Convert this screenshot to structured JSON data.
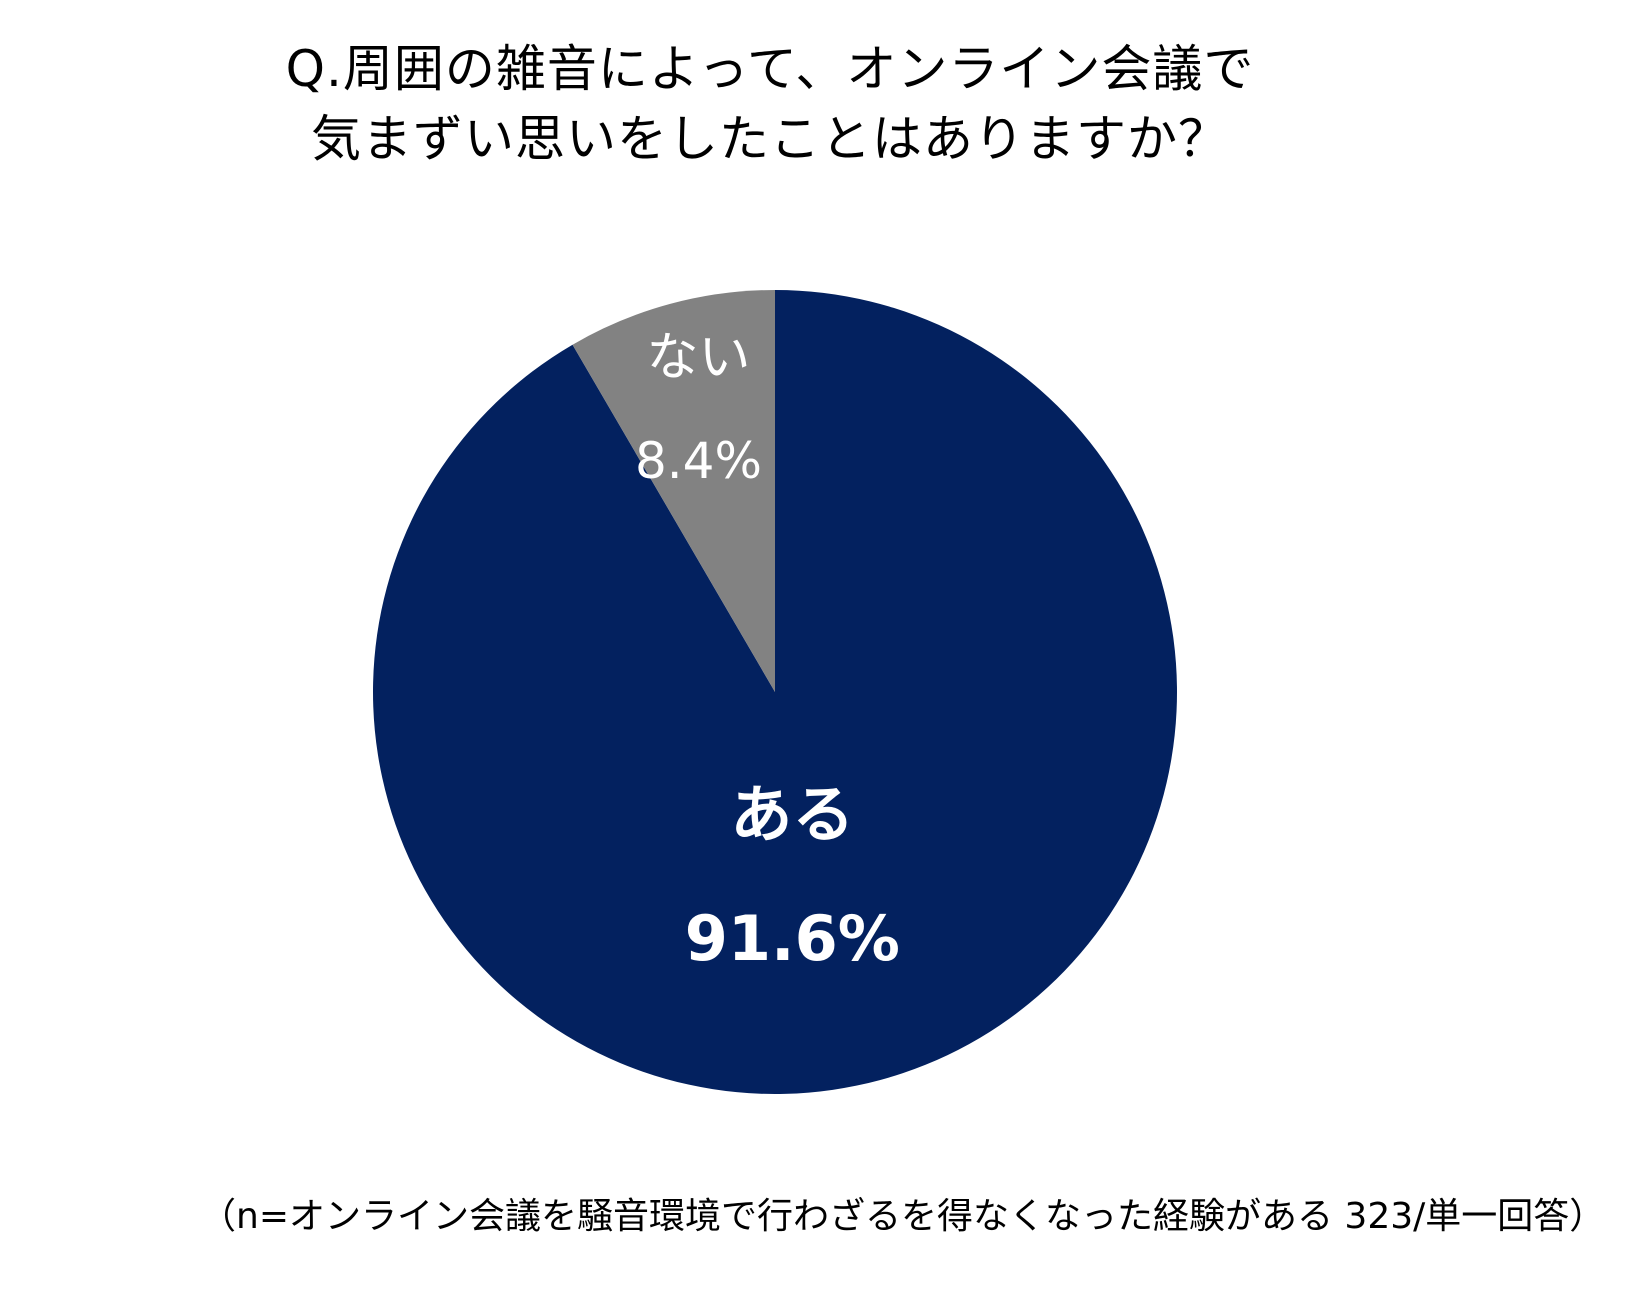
{
  "title": {
    "line1": "Q.周囲の雑音によって、オンライン会議で",
    "line2": "気まずい思いをしたことはありますか？"
  },
  "chart_data": {
    "type": "pie",
    "title": "Q.周囲の雑音によって、オンライン会議で気まずい思いをしたことはありますか？",
    "slices": [
      {
        "label": "ある",
        "value": 91.6,
        "value_label": "91.6%",
        "color": "#03215f",
        "text_color": "#ffffff",
        "bold": true
      },
      {
        "label": "ない",
        "value": 8.4,
        "value_label": "8.4%",
        "color": "#828282",
        "text_color": "#ffffff",
        "bold": false
      }
    ],
    "start": "12 o'clock",
    "direction": "clockwise",
    "legend": "none"
  },
  "footnote": "（n=オンライン会議を騒音環境で行わざるを得なくなった経験がある 323/単一回答）"
}
